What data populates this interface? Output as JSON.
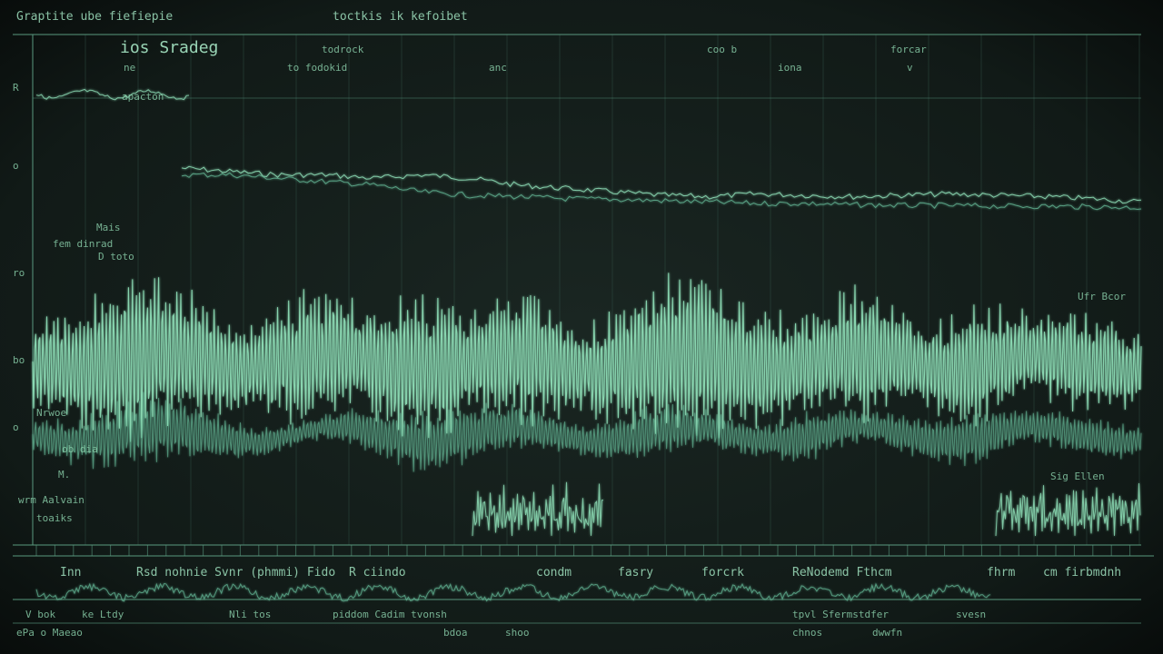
{
  "header": {
    "top_left": "Graptite ube fiefiepie",
    "top_center": "toctkis ik kefoibet"
  },
  "labels": {
    "title": "ios Sradeg",
    "t1": "todrock",
    "t1b": "to fodokid",
    "t2": "anc",
    "t3": "coo b",
    "t3b": "iona",
    "t4": "forcar",
    "t4b": "v",
    "left_a": "ne",
    "row1": "apacton",
    "row2": "Mais",
    "row2b": "fem dinrad",
    "row2c": "D toto",
    "row3": "Nrwoe",
    "row3b": "ob dia",
    "row3c": "M.",
    "row4": "wrm Aalvain",
    "row4b": "toaiks",
    "right1": "Ufr Bcor",
    "right2": "Sig Ellen",
    "axis_left": [
      "R",
      "o",
      "ro",
      "bo",
      "o"
    ]
  },
  "bottom": {
    "row_a": [
      "Inn",
      "Rsd nohnie Svnr (phmmi) Fido",
      "R ciindo",
      "condm",
      "fasry",
      "forcrk",
      "ReNodemd Fthcm",
      "fhrm",
      "cm firbmdnh"
    ],
    "row_b": [
      "V bok",
      "ke Ltdy",
      "Nli tos",
      "piddom Cadim tvonsh",
      "tpvl Sfermstdfer",
      "svesn"
    ],
    "row_c": [
      "ePa o Maeao",
      "bdoa",
      "shoo",
      "chnos",
      "dwwfn"
    ]
  },
  "colors": {
    "background": "#0d1311",
    "trace": "#8fe0b8",
    "trace_dim": "#5fae8e",
    "grid": "#2d4a40",
    "text": "#9fe0be"
  },
  "chart_data": [
    {
      "type": "line",
      "title": "",
      "xlabel": "",
      "ylabel": "",
      "x": [
        0,
        1,
        2,
        3,
        4,
        5,
        6,
        7,
        8,
        9,
        10,
        11,
        12,
        13,
        14,
        15,
        16,
        17,
        18,
        19,
        20
      ],
      "series": [
        {
          "values": [
            0.2,
            0.25,
            0.3,
            0.3,
            0.35,
            0.3,
            0.35,
            0.45,
            0.5,
            0.55,
            0.6,
            0.62,
            0.58,
            0.6,
            0.62,
            0.6,
            0.58,
            0.6,
            0.62,
            0.65,
            0.7
          ]
        },
        {
          "values": [
            0.3,
            0.3,
            0.35,
            0.4,
            0.45,
            0.55,
            0.6,
            0.62,
            0.65,
            0.66,
            0.68,
            0.7,
            0.72,
            0.72,
            0.74,
            0.75,
            0.75,
            0.76,
            0.76,
            0.77,
            0.78
          ]
        }
      ],
      "grid": true
    },
    {
      "type": "line",
      "title": "",
      "x": [
        0,
        1,
        2,
        3,
        4,
        5,
        6,
        7,
        8,
        9,
        10,
        11,
        12,
        13,
        14,
        15,
        16,
        17,
        18,
        19,
        20
      ],
      "series": [
        {
          "values": [
            0.5,
            0.8,
            1.0,
            0.7,
            0.5,
            0.8,
            0.6,
            0.9,
            0.6,
            0.8,
            0.5,
            0.9,
            1.0,
            0.7,
            0.6,
            0.8,
            0.5,
            0.7,
            0.5,
            0.6,
            0.5
          ]
        },
        {
          "values": [
            0.3,
            0.5,
            0.7,
            0.5,
            0.3,
            0.2,
            0.4,
            0.6,
            0.5,
            0.4,
            0.3,
            0.5,
            0.4,
            0.3,
            0.5,
            0.3,
            0.4,
            0.5,
            0.3,
            0.4,
            0.3
          ]
        }
      ],
      "grid": true
    }
  ]
}
